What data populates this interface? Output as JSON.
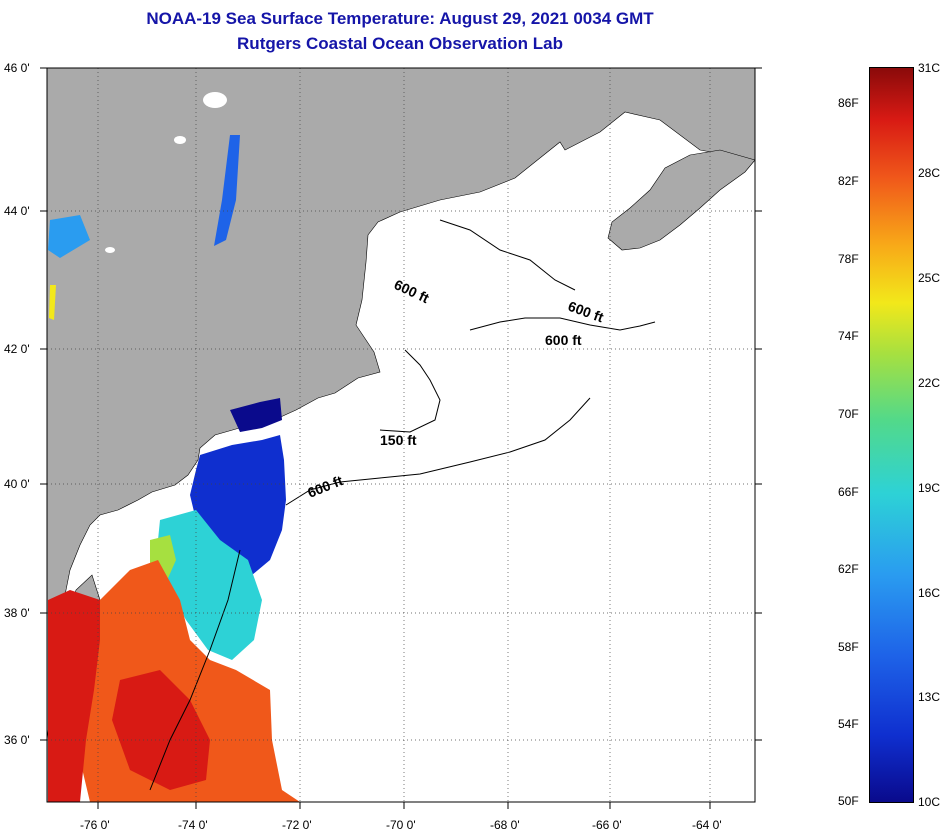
{
  "title": {
    "line1": "NOAA-19 Sea Surface Temperature:  August 29, 2021 0034 GMT",
    "line2": "Rutgers Coastal Ocean Observation Lab"
  },
  "axes": {
    "lat_labels": [
      "46 0'",
      "44 0'",
      "42 0'",
      "40 0'",
      "38 0'",
      "36 0'"
    ],
    "lon_labels": [
      "-76 0'",
      "-74 0'",
      "-72 0'",
      "-70 0'",
      "-68 0'",
      "-66 0'",
      "-64 0'"
    ]
  },
  "contours": {
    "c1": "600 ft",
    "c2": "600 ft",
    "c3": "600 ft",
    "c4": "150 ft",
    "c5": "600 ft"
  },
  "colorbar": {
    "fahrenheit": [
      "86F",
      "82F",
      "78F",
      "74F",
      "70F",
      "66F",
      "62F",
      "58F",
      "54F",
      "50F"
    ],
    "celsius": [
      "31C",
      "28C",
      "25C",
      "22C",
      "19C",
      "16C",
      "13C",
      "10C"
    ]
  },
  "colors": {
    "land": "#aaaaaa",
    "ocean": "#ffffff",
    "title": "#1515a8",
    "sst_cold": "#0a0a8c",
    "sst_warm": "#d81a14"
  }
}
